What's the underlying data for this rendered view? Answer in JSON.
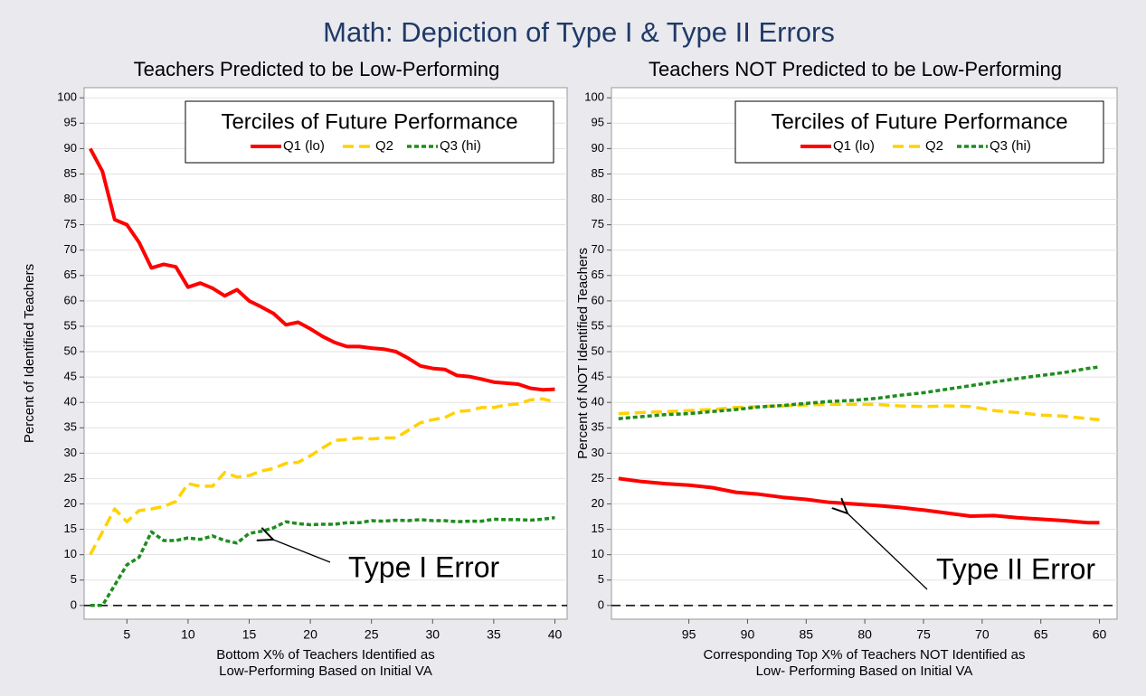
{
  "title": "Math: Depiction of Type I & Type II Errors",
  "chart_data": [
    {
      "type": "line",
      "title": "Teachers Predicted to be Low-Performing",
      "xlabel": [
        "Bottom X% of Teachers Identified as",
        "Low-Performing Based on Initial VA"
      ],
      "ylabel": "Percent of Identified Teachers",
      "x": [
        2,
        3,
        4,
        5,
        6,
        7,
        8,
        9,
        10,
        11,
        12,
        13,
        14,
        15,
        16,
        17,
        18,
        19,
        20,
        21,
        22,
        23,
        24,
        25,
        26,
        27,
        28,
        29,
        30,
        31,
        32,
        33,
        34,
        35,
        36,
        37,
        38,
        39,
        40
      ],
      "series": [
        {
          "name": "Q1 (lo)",
          "color": "#ff0000",
          "style": "solid",
          "values": [
            90,
            85.5,
            76,
            75,
            71.5,
            66.5,
            67.2,
            66.7,
            62.7,
            63.5,
            62.5,
            61,
            62.2,
            60,
            58.8,
            57.5,
            55.3,
            55.8,
            54.5,
            53,
            51.8,
            51,
            51,
            50.7,
            50.5,
            50,
            48.7,
            47.2,
            46.7,
            46.5,
            45.3,
            45.1,
            44.6,
            44,
            43.8,
            43.6,
            42.8,
            42.5,
            42.6
          ]
        },
        {
          "name": "Q2",
          "color": "#ffd200",
          "style": "dashed",
          "values": [
            10,
            14.5,
            19,
            16.5,
            18.7,
            19,
            19.5,
            20.5,
            24,
            23.5,
            23.5,
            26.2,
            25.3,
            25.6,
            26.5,
            27,
            28,
            28.2,
            29.5,
            31,
            32.5,
            32.7,
            33,
            32.8,
            33,
            33,
            34.5,
            36,
            36.6,
            37,
            38.2,
            38.4,
            39,
            39,
            39.5,
            39.7,
            40.5,
            40.7,
            40.1
          ]
        },
        {
          "name": "Q3 (hi)",
          "color": "#1e8c1e",
          "style": "dotted",
          "values": [
            0,
            0,
            4,
            8,
            9.5,
            14.5,
            12.8,
            12.8,
            13.3,
            13,
            13.7,
            12.8,
            12.3,
            14.2,
            14.6,
            15.3,
            16.5,
            16.1,
            15.9,
            16,
            16,
            16.3,
            16.3,
            16.7,
            16.6,
            16.8,
            16.7,
            16.9,
            16.7,
            16.7,
            16.5,
            16.6,
            16.6,
            17,
            16.9,
            16.9,
            16.8,
            17,
            17.3
          ]
        }
      ],
      "xlim": [
        1.5,
        41
      ],
      "xticks": [
        5,
        10,
        15,
        20,
        25,
        30,
        35,
        40
      ],
      "ylim": [
        -2.7,
        102
      ],
      "yticks": [
        0,
        5,
        10,
        15,
        20,
        25,
        30,
        35,
        40,
        45,
        50,
        55,
        60,
        65,
        70,
        75,
        80,
        85,
        90,
        95,
        100
      ],
      "grid": true,
      "reference_line": 0,
      "legend_title": "Terciles of Future Performance",
      "legend_position": "top-right",
      "annotation": "Type I Error"
    },
    {
      "type": "line",
      "title": "Teachers NOT Predicted to be Low-Performing",
      "xlabel": [
        "Corresponding Top X% of Teachers NOT Identified as",
        "Low- Performing Based on Initial VA"
      ],
      "ylabel": "Percent of NOT Identified Teachers",
      "x": [
        101,
        99,
        97,
        95,
        93,
        91,
        89,
        87,
        85,
        83,
        81,
        79,
        77,
        75,
        73,
        71,
        69,
        67,
        65,
        63,
        61,
        60
      ],
      "series": [
        {
          "name": "Q1 (lo)",
          "color": "#ff0000",
          "style": "solid",
          "values": [
            25,
            24.4,
            24,
            23.7,
            23.2,
            22.3,
            21.9,
            21.3,
            20.9,
            20.3,
            20,
            19.7,
            19.3,
            18.8,
            18.2,
            17.6,
            17.7,
            17.3,
            17,
            16.7,
            16.3,
            16.3
          ]
        },
        {
          "name": "Q2",
          "color": "#ffd200",
          "style": "dashed",
          "values": [
            37.8,
            38,
            38.2,
            38.4,
            38.6,
            39,
            39.2,
            39.3,
            39.5,
            39.6,
            39.6,
            39.6,
            39.3,
            39.2,
            39.3,
            39.2,
            38.4,
            38,
            37.5,
            37.3,
            36.8,
            36.6
          ]
        },
        {
          "name": "Q3 (hi)",
          "color": "#1e8c1e",
          "style": "dotted",
          "values": [
            36.8,
            37.2,
            37.6,
            37.8,
            38.2,
            38.6,
            39.1,
            39.4,
            39.8,
            40.2,
            40.4,
            40.8,
            41.4,
            41.9,
            42.6,
            43.3,
            44,
            44.7,
            45.3,
            45.9,
            46.7,
            47
          ]
        }
      ],
      "xlim": [
        101.6,
        58.5
      ],
      "xticks": [
        95,
        90,
        85,
        80,
        75,
        70,
        65,
        60
      ],
      "ylim": [
        -2.7,
        102
      ],
      "yticks": [
        0,
        5,
        10,
        15,
        20,
        25,
        30,
        35,
        40,
        45,
        50,
        55,
        60,
        65,
        70,
        75,
        80,
        85,
        90,
        95,
        100
      ],
      "grid": true,
      "reference_line": 0,
      "legend_title": "Terciles of Future Performance",
      "legend_position": "top-right",
      "annotation": "Type II Error"
    }
  ]
}
